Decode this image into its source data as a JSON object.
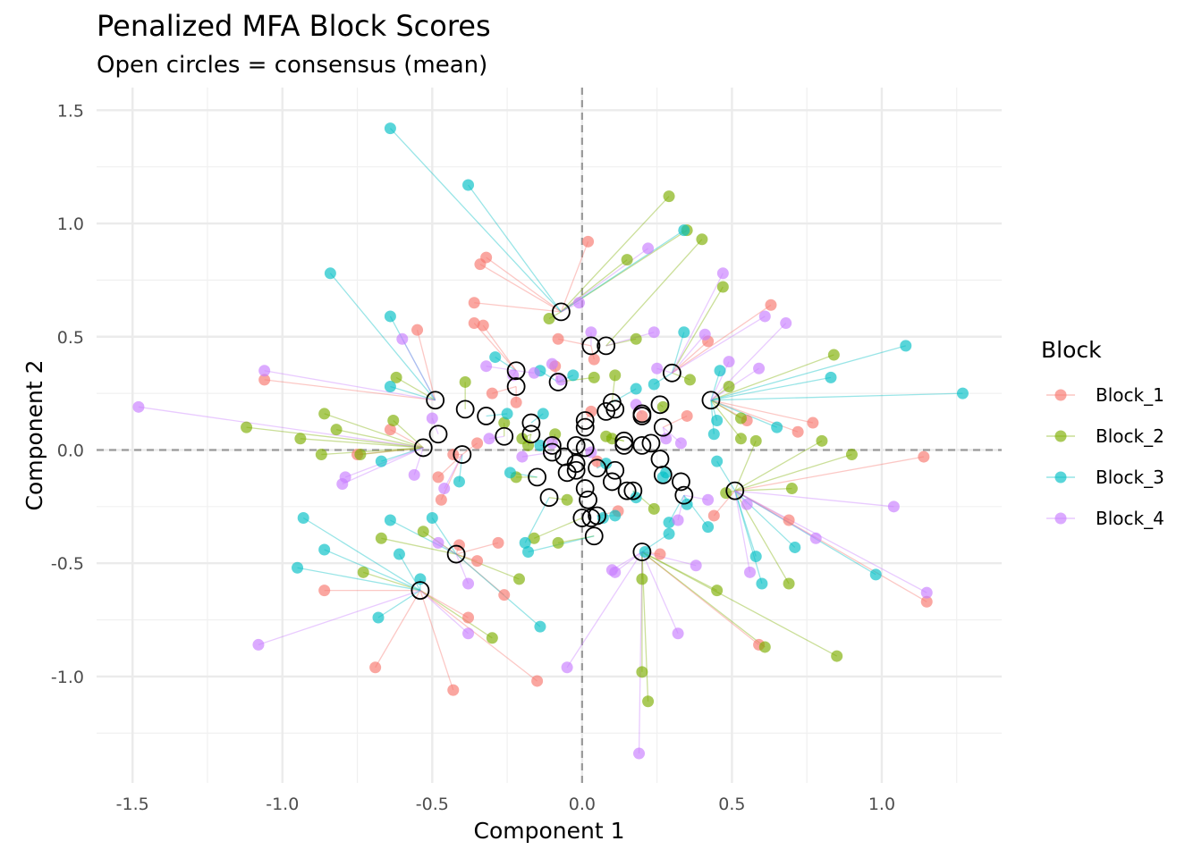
{
  "title": "Penalized MFA Block Scores",
  "subtitle": "Open circles = consensus (mean)",
  "chart_data": {
    "type": "scatter",
    "title": "Penalized MFA Block Scores",
    "subtitle": "Open circles = consensus (mean)",
    "xlabel": "Component 1",
    "ylabel": "Component 2",
    "xlim": [
      -1.62,
      1.4
    ],
    "ylim": [
      -1.47,
      1.6
    ],
    "x_ticks": [
      -1.5,
      -1.0,
      -0.5,
      0.0,
      0.5,
      1.0
    ],
    "x_tick_labels": [
      "-1.5",
      "-1.0",
      "-0.5",
      "0.0",
      "0.5",
      "1.0"
    ],
    "y_ticks": [
      -1.0,
      -0.5,
      0.0,
      0.5,
      1.0,
      1.5
    ],
    "y_tick_labels": [
      "-1.0",
      "-0.5",
      "0.0",
      "0.5",
      "1.0",
      "1.5"
    ],
    "grid": true,
    "reference_lines": {
      "x": 0,
      "y": 0,
      "style": "dashed"
    },
    "legend": {
      "title": "Block",
      "position": "right"
    },
    "series": [
      {
        "name": "Block_1",
        "color": "#F8766D",
        "points": [
          [
            -1.06,
            0.31
          ],
          [
            -0.55,
            0.53
          ],
          [
            -0.36,
            0.65
          ],
          [
            -0.34,
            0.82
          ],
          [
            -0.32,
            0.85
          ],
          [
            -0.36,
            0.56
          ],
          [
            -0.33,
            0.55
          ],
          [
            -0.08,
            0.49
          ],
          [
            0.02,
            0.92
          ],
          [
            0.04,
            0.4
          ],
          [
            0.63,
            0.64
          ],
          [
            0.42,
            0.48
          ],
          [
            0.77,
            0.12
          ],
          [
            0.72,
            0.08
          ],
          [
            0.55,
            0.13
          ],
          [
            0.35,
            0.15
          ],
          [
            -0.22,
            0.21
          ],
          [
            -0.3,
            0.25
          ],
          [
            -0.35,
            0.03
          ],
          [
            -0.43,
            -0.02
          ],
          [
            -0.48,
            -0.12
          ],
          [
            -0.47,
            -0.22
          ],
          [
            -0.75,
            -0.02
          ],
          [
            -0.64,
            0.09
          ],
          [
            -0.86,
            -0.62
          ],
          [
            -0.69,
            -0.96
          ],
          [
            -0.43,
            -1.06
          ],
          [
            -0.15,
            -1.02
          ],
          [
            -0.26,
            -0.64
          ],
          [
            -0.28,
            -0.41
          ],
          [
            -0.35,
            -0.49
          ],
          [
            -0.38,
            -0.74
          ],
          [
            -0.41,
            -0.42
          ],
          [
            0.12,
            -0.27
          ],
          [
            0.26,
            -0.46
          ],
          [
            0.44,
            -0.29
          ],
          [
            0.59,
            -0.86
          ],
          [
            0.69,
            -0.31
          ],
          [
            1.15,
            -0.67
          ],
          [
            1.14,
            -0.03
          ],
          [
            0.2,
            0.15
          ],
          [
            0.03,
            0.17
          ],
          [
            0.05,
            -0.05
          ],
          [
            -0.09,
            0.37
          ]
        ]
      },
      {
        "name": "Block_2",
        "color": "#7CAE00",
        "points": [
          [
            -1.12,
            0.1
          ],
          [
            -0.94,
            0.05
          ],
          [
            -0.87,
            -0.02
          ],
          [
            -0.86,
            0.16
          ],
          [
            -0.82,
            0.09
          ],
          [
            -0.74,
            -0.02
          ],
          [
            -0.73,
            -0.54
          ],
          [
            -0.67,
            -0.39
          ],
          [
            -0.62,
            0.32
          ],
          [
            -0.63,
            0.13
          ],
          [
            -0.53,
            -0.36
          ],
          [
            -0.39,
            0.3
          ],
          [
            -0.3,
            -0.83
          ],
          [
            -0.26,
            0.12
          ],
          [
            -0.21,
            -0.57
          ],
          [
            -0.16,
            -0.39
          ],
          [
            -0.11,
            0.58
          ],
          [
            -0.08,
            -0.41
          ],
          [
            -0.09,
            0.07
          ],
          [
            -0.18,
            0.02
          ],
          [
            0.08,
            0.06
          ],
          [
            0.11,
            0.33
          ],
          [
            0.04,
            0.32
          ],
          [
            0.15,
            0.84
          ],
          [
            0.29,
            1.12
          ],
          [
            0.35,
            0.97
          ],
          [
            0.4,
            0.93
          ],
          [
            0.47,
            0.72
          ],
          [
            0.49,
            0.28
          ],
          [
            0.53,
            0.05
          ],
          [
            0.53,
            0.14
          ],
          [
            0.58,
            0.04
          ],
          [
            0.84,
            0.42
          ],
          [
            0.8,
            0.04
          ],
          [
            0.9,
            -0.02
          ],
          [
            0.7,
            -0.17
          ],
          [
            0.48,
            -0.19
          ],
          [
            0.45,
            -0.62
          ],
          [
            0.61,
            -0.87
          ],
          [
            0.69,
            -0.59
          ],
          [
            0.85,
            -0.91
          ],
          [
            0.2,
            -0.98
          ],
          [
            0.22,
            -1.11
          ],
          [
            0.2,
            -0.57
          ],
          [
            0.24,
            -0.26
          ],
          [
            0.27,
            0.19
          ],
          [
            0.18,
            0.49
          ],
          [
            0.36,
            0.31
          ],
          [
            0.1,
            0.05
          ],
          [
            -0.22,
            -0.12
          ],
          [
            -0.05,
            -0.22
          ],
          [
            -0.2,
            0.05
          ]
        ]
      },
      {
        "name": "Block_3",
        "color": "#00BFC4",
        "points": [
          [
            -0.64,
            1.42
          ],
          [
            -0.38,
            1.17
          ],
          [
            -0.84,
            0.78
          ],
          [
            -0.64,
            0.59
          ],
          [
            -0.64,
            0.28
          ],
          [
            -0.67,
            -0.05
          ],
          [
            -0.93,
            -0.3
          ],
          [
            -0.95,
            -0.52
          ],
          [
            -0.86,
            -0.44
          ],
          [
            -0.64,
            -0.31
          ],
          [
            -0.61,
            -0.46
          ],
          [
            -0.68,
            -0.74
          ],
          [
            -0.54,
            -0.57
          ],
          [
            -0.5,
            -0.3
          ],
          [
            -0.41,
            -0.14
          ],
          [
            -0.29,
            0.41
          ],
          [
            -0.25,
            0.16
          ],
          [
            -0.24,
            -0.1
          ],
          [
            -0.19,
            -0.41
          ],
          [
            -0.18,
            -0.45
          ],
          [
            -0.14,
            0.02
          ],
          [
            -0.14,
            0.35
          ],
          [
            -0.13,
            0.16
          ],
          [
            -0.14,
            -0.78
          ],
          [
            -0.03,
            0.33
          ],
          [
            0.08,
            -0.06
          ],
          [
            0.07,
            -0.3
          ],
          [
            0.11,
            -0.29
          ],
          [
            0.18,
            -0.21
          ],
          [
            0.18,
            0.27
          ],
          [
            0.21,
            -0.45
          ],
          [
            0.24,
            0.29
          ],
          [
            0.27,
            -0.12
          ],
          [
            0.28,
            -0.1
          ],
          [
            0.29,
            -0.32
          ],
          [
            0.34,
            0.52
          ],
          [
            0.34,
            0.97
          ],
          [
            0.35,
            -0.24
          ],
          [
            0.42,
            -0.34
          ],
          [
            0.44,
            0.07
          ],
          [
            0.45,
            0.13
          ],
          [
            0.45,
            -0.05
          ],
          [
            0.46,
            0.35
          ],
          [
            0.58,
            -0.47
          ],
          [
            0.6,
            -0.59
          ],
          [
            0.65,
            0.1
          ],
          [
            0.71,
            -0.43
          ],
          [
            0.83,
            0.32
          ],
          [
            0.98,
            -0.55
          ],
          [
            1.08,
            0.46
          ],
          [
            1.27,
            0.25
          ],
          [
            0.29,
            -0.37
          ]
        ]
      },
      {
        "name": "Block_4",
        "color": "#C77CFF",
        "points": [
          [
            -1.48,
            0.19
          ],
          [
            -1.06,
            0.35
          ],
          [
            -1.08,
            -0.86
          ],
          [
            -0.8,
            -0.15
          ],
          [
            -0.79,
            -0.12
          ],
          [
            -0.6,
            0.49
          ],
          [
            -0.56,
            -0.11
          ],
          [
            -0.5,
            0.14
          ],
          [
            -0.48,
            -0.41
          ],
          [
            -0.46,
            -0.17
          ],
          [
            -0.38,
            -0.59
          ],
          [
            -0.38,
            -0.81
          ],
          [
            -0.32,
            0.37
          ],
          [
            -0.31,
            0.05
          ],
          [
            -0.2,
            -0.03
          ],
          [
            -0.16,
            0.34
          ],
          [
            -0.1,
            0.38
          ],
          [
            -0.07,
            0.31
          ],
          [
            -0.1,
            0.03
          ],
          [
            -0.01,
            0.65
          ],
          [
            0.03,
            0.52
          ],
          [
            0.03,
            -0.01
          ],
          [
            -0.05,
            -0.96
          ],
          [
            0.1,
            -0.53
          ],
          [
            0.11,
            -0.54
          ],
          [
            0.19,
            -1.34
          ],
          [
            0.22,
            0.89
          ],
          [
            0.24,
            0.52
          ],
          [
            0.25,
            0.36
          ],
          [
            0.28,
            0.05
          ],
          [
            0.32,
            -0.31
          ],
          [
            0.32,
            -0.81
          ],
          [
            0.33,
            0.03
          ],
          [
            0.38,
            -0.51
          ],
          [
            0.41,
            0.51
          ],
          [
            0.42,
            -0.22
          ],
          [
            0.47,
            0.78
          ],
          [
            0.49,
            0.39
          ],
          [
            0.55,
            -0.24
          ],
          [
            0.56,
            -0.54
          ],
          [
            0.59,
            0.36
          ],
          [
            0.61,
            0.59
          ],
          [
            0.68,
            0.56
          ],
          [
            0.78,
            -0.39
          ],
          [
            1.04,
            -0.25
          ],
          [
            1.15,
            -0.63
          ],
          [
            -0.23,
            0.33
          ],
          [
            0.18,
            0.2
          ]
        ]
      }
    ],
    "consensus": {
      "style": "open circle",
      "color": "#000000",
      "points": [
        [
          -0.07,
          0.61
        ],
        [
          -0.22,
          0.35
        ],
        [
          -0.22,
          0.28
        ],
        [
          -0.08,
          0.3
        ],
        [
          0.03,
          0.46
        ],
        [
          0.08,
          0.46
        ],
        [
          0.3,
          0.34
        ],
        [
          0.43,
          0.22
        ],
        [
          0.26,
          0.2
        ],
        [
          0.1,
          0.21
        ],
        [
          0.11,
          0.18
        ],
        [
          0.08,
          0.17
        ],
        [
          0.2,
          0.16
        ],
        [
          0.2,
          0.15
        ],
        [
          0.27,
          0.1
        ],
        [
          0.01,
          0.13
        ],
        [
          0.01,
          0.1
        ],
        [
          0.14,
          0.04
        ],
        [
          0.14,
          0.02
        ],
        [
          0.2,
          0.02
        ],
        [
          0.23,
          0.03
        ],
        [
          -0.49,
          0.22
        ],
        [
          -0.39,
          0.18
        ],
        [
          -0.32,
          0.15
        ],
        [
          -0.17,
          0.12
        ],
        [
          -0.17,
          0.07
        ],
        [
          -0.26,
          0.06
        ],
        [
          -0.48,
          0.07
        ],
        [
          -0.53,
          0.01
        ],
        [
          -0.4,
          -0.02
        ],
        [
          -0.1,
          0.02
        ],
        [
          -0.1,
          -0.01
        ],
        [
          -0.02,
          0.02
        ],
        [
          0.01,
          0.01
        ],
        [
          0.26,
          -0.04
        ],
        [
          -0.06,
          -0.03
        ],
        [
          -0.02,
          -0.06
        ],
        [
          -0.05,
          -0.1
        ],
        [
          -0.02,
          -0.09
        ],
        [
          0.05,
          -0.08
        ],
        [
          0.11,
          -0.09
        ],
        [
          0.27,
          -0.11
        ],
        [
          -0.15,
          -0.12
        ],
        [
          0.01,
          -0.17
        ],
        [
          0.1,
          -0.14
        ],
        [
          0.15,
          -0.18
        ],
        [
          0.17,
          -0.18
        ],
        [
          0.33,
          -0.14
        ],
        [
          0.34,
          -0.2
        ],
        [
          0.51,
          -0.18
        ],
        [
          -0.11,
          -0.21
        ],
        [
          0.02,
          -0.22
        ],
        [
          0.0,
          -0.3
        ],
        [
          0.03,
          -0.3
        ],
        [
          0.05,
          -0.29
        ],
        [
          0.04,
          -0.38
        ],
        [
          0.2,
          -0.45
        ],
        [
          -0.42,
          -0.46
        ],
        [
          -0.54,
          -0.62
        ]
      ]
    }
  }
}
